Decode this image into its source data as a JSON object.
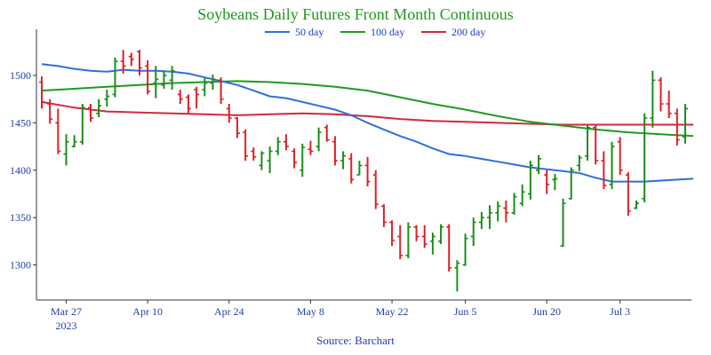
{
  "chart_data": {
    "type": "ohlc",
    "title": "Soybeans Daily Futures Front Month Continuous",
    "source": "Source: Barchart",
    "colors": {
      "title": "#1d9a1d",
      "up": "#1c8c1c",
      "down": "#e01f26",
      "ma50": "#2f6fdc",
      "ma100": "#1e9b1e",
      "ma200": "#d12a3c",
      "axis": "#333333"
    },
    "ylim": [
      1263,
      1545
    ],
    "y_ticks": [
      1300,
      1350,
      1400,
      1450,
      1500
    ],
    "x_ticks": [
      {
        "i": 3,
        "label": "Mar 27",
        "sub": "2023"
      },
      {
        "i": 13,
        "label": "Apr 10",
        "sub": ""
      },
      {
        "i": 23,
        "label": "Apr 24",
        "sub": ""
      },
      {
        "i": 33,
        "label": "May 8",
        "sub": ""
      },
      {
        "i": 43,
        "label": "May 22",
        "sub": ""
      },
      {
        "i": 52,
        "label": "Jun 5",
        "sub": ""
      },
      {
        "i": 62,
        "label": "Jun 20",
        "sub": ""
      },
      {
        "i": 71,
        "label": "Jul 3",
        "sub": ""
      }
    ],
    "legend": [
      {
        "key": "ma50",
        "label": "50 day"
      },
      {
        "key": "ma100",
        "label": "100 day"
      },
      {
        "key": "ma200",
        "label": "200 day"
      }
    ],
    "n_days": 80,
    "bars": [
      [
        1493,
        1499,
        1465,
        1472
      ],
      [
        1470,
        1475,
        1449,
        1454
      ],
      [
        1450,
        1465,
        1417,
        1420
      ],
      [
        1417,
        1438,
        1405,
        1430
      ],
      [
        1425,
        1437,
        1424,
        1430
      ],
      [
        1430,
        1470,
        1427,
        1466
      ],
      [
        1466,
        1470,
        1451,
        1455
      ],
      [
        1460,
        1475,
        1456,
        1468
      ],
      [
        1475,
        1485,
        1467,
        1478
      ],
      [
        1480,
        1519,
        1477,
        1515
      ],
      [
        1515,
        1527,
        1502,
        1510
      ],
      [
        1520,
        1524,
        1510,
        1517
      ],
      [
        1525,
        1527,
        1500,
        1508
      ],
      [
        1510,
        1516,
        1480,
        1483
      ],
      [
        1492,
        1510,
        1476,
        1496
      ],
      [
        1490,
        1505,
        1486,
        1500
      ],
      [
        1495,
        1510,
        1485,
        1505
      ],
      [
        1480,
        1485,
        1470,
        1475
      ],
      [
        1477,
        1480,
        1460,
        1465
      ],
      [
        1485,
        1488,
        1465,
        1480
      ],
      [
        1485,
        1497,
        1478,
        1492
      ],
      [
        1492,
        1501,
        1485,
        1496
      ],
      [
        1495,
        1498,
        1470,
        1475
      ],
      [
        1465,
        1470,
        1450,
        1455
      ],
      [
        1455,
        1456,
        1434,
        1439
      ],
      [
        1440,
        1443,
        1410,
        1415
      ],
      [
        1420,
        1424,
        1410,
        1414
      ],
      [
        1405,
        1420,
        1400,
        1418
      ],
      [
        1410,
        1425,
        1397,
        1420
      ],
      [
        1420,
        1435,
        1416,
        1430
      ],
      [
        1430,
        1438,
        1421,
        1425
      ],
      [
        1420,
        1423,
        1402,
        1408
      ],
      [
        1400,
        1428,
        1393,
        1424
      ],
      [
        1422,
        1431,
        1416,
        1420
      ],
      [
        1425,
        1445,
        1420,
        1440
      ],
      [
        1445,
        1448,
        1430,
        1432
      ],
      [
        1430,
        1436,
        1405,
        1410
      ],
      [
        1410,
        1420,
        1401,
        1415
      ],
      [
        1412,
        1418,
        1386,
        1390
      ],
      [
        1395,
        1410,
        1395,
        1405
      ],
      [
        1405,
        1414,
        1383,
        1388
      ],
      [
        1395,
        1400,
        1359,
        1364
      ],
      [
        1362,
        1364,
        1340,
        1345
      ],
      [
        1345,
        1347,
        1320,
        1326
      ],
      [
        1330,
        1342,
        1306,
        1310
      ],
      [
        1310,
        1345,
        1307,
        1340
      ],
      [
        1340,
        1342,
        1325,
        1330
      ],
      [
        1330,
        1342,
        1318,
        1322
      ],
      [
        1325,
        1334,
        1311,
        1330
      ],
      [
        1325,
        1343,
        1322,
        1340
      ],
      [
        1340,
        1343,
        1293,
        1297
      ],
      [
        1297,
        1305,
        1272,
        1302
      ],
      [
        1300,
        1333,
        1299,
        1328
      ],
      [
        1330,
        1350,
        1320,
        1345
      ],
      [
        1345,
        1356,
        1338,
        1350
      ],
      [
        1350,
        1363,
        1338,
        1355
      ],
      [
        1355,
        1367,
        1346,
        1362
      ],
      [
        1360,
        1368,
        1345,
        1355
      ],
      [
        1355,
        1376,
        1353,
        1372
      ],
      [
        1365,
        1385,
        1362,
        1377
      ],
      [
        1375,
        1410,
        1369,
        1405
      ],
      [
        1400,
        1416,
        1396,
        1412
      ],
      [
        1395,
        1400,
        1375,
        1385
      ],
      [
        1390,
        1396,
        1379,
        1391
      ],
      [
        1320,
        1370,
        1319,
        1365
      ],
      [
        1370,
        1403,
        1369,
        1400
      ],
      [
        1405,
        1416,
        1399,
        1413
      ],
      [
        1415,
        1448,
        1410,
        1445
      ],
      [
        1445,
        1448,
        1406,
        1410
      ],
      [
        1410,
        1420,
        1380,
        1384
      ],
      [
        1385,
        1430,
        1380,
        1425
      ],
      [
        1430,
        1435,
        1395,
        1400
      ],
      [
        1395,
        1398,
        1352,
        1357
      ],
      [
        1360,
        1368,
        1359,
        1365
      ],
      [
        1370,
        1460,
        1366,
        1455
      ],
      [
        1455,
        1505,
        1445,
        1495
      ],
      [
        1495,
        1498,
        1462,
        1470
      ],
      [
        1470,
        1484,
        1455,
        1460
      ],
      [
        1460,
        1465,
        1426,
        1432
      ],
      [
        1435,
        1470,
        1428,
        1465
      ]
    ],
    "ma50": [
      [
        0,
        1512
      ],
      [
        2,
        1510
      ],
      [
        4,
        1507
      ],
      [
        6,
        1505
      ],
      [
        8,
        1504
      ],
      [
        10,
        1506
      ],
      [
        12,
        1505
      ],
      [
        14,
        1505
      ],
      [
        16,
        1504
      ],
      [
        18,
        1502
      ],
      [
        20,
        1498
      ],
      [
        22,
        1494
      ],
      [
        24,
        1490
      ],
      [
        26,
        1484
      ],
      [
        28,
        1478
      ],
      [
        30,
        1476
      ],
      [
        32,
        1472
      ],
      [
        34,
        1468
      ],
      [
        36,
        1464
      ],
      [
        38,
        1458
      ],
      [
        40,
        1450
      ],
      [
        42,
        1443
      ],
      [
        44,
        1436
      ],
      [
        46,
        1430
      ],
      [
        48,
        1423
      ],
      [
        50,
        1417
      ],
      [
        52,
        1415
      ],
      [
        54,
        1412
      ],
      [
        56,
        1409
      ],
      [
        58,
        1406
      ],
      [
        60,
        1403
      ],
      [
        62,
        1401
      ],
      [
        64,
        1399
      ],
      [
        66,
        1397
      ],
      [
        68,
        1392
      ],
      [
        70,
        1388
      ],
      [
        72,
        1388
      ],
      [
        74,
        1388
      ],
      [
        76,
        1389
      ],
      [
        78,
        1390
      ],
      [
        80,
        1391
      ]
    ],
    "ma100": [
      [
        0,
        1484
      ],
      [
        4,
        1486
      ],
      [
        8,
        1488
      ],
      [
        12,
        1490
      ],
      [
        16,
        1492
      ],
      [
        20,
        1493
      ],
      [
        24,
        1494
      ],
      [
        28,
        1493
      ],
      [
        32,
        1491
      ],
      [
        36,
        1488
      ],
      [
        40,
        1484
      ],
      [
        44,
        1477
      ],
      [
        48,
        1470
      ],
      [
        52,
        1464
      ],
      [
        56,
        1457
      ],
      [
        60,
        1451
      ],
      [
        64,
        1447
      ],
      [
        68,
        1443
      ],
      [
        72,
        1440
      ],
      [
        76,
        1438
      ],
      [
        80,
        1436
      ]
    ],
    "ma200": [
      [
        0,
        1472
      ],
      [
        4,
        1466
      ],
      [
        8,
        1462
      ],
      [
        12,
        1461
      ],
      [
        16,
        1460
      ],
      [
        20,
        1459
      ],
      [
        24,
        1458
      ],
      [
        28,
        1459
      ],
      [
        32,
        1460
      ],
      [
        36,
        1459
      ],
      [
        40,
        1457
      ],
      [
        44,
        1454
      ],
      [
        48,
        1452
      ],
      [
        52,
        1451
      ],
      [
        56,
        1450
      ],
      [
        60,
        1449
      ],
      [
        64,
        1448
      ],
      [
        68,
        1448
      ],
      [
        72,
        1448
      ],
      [
        76,
        1448
      ],
      [
        80,
        1448
      ]
    ]
  }
}
